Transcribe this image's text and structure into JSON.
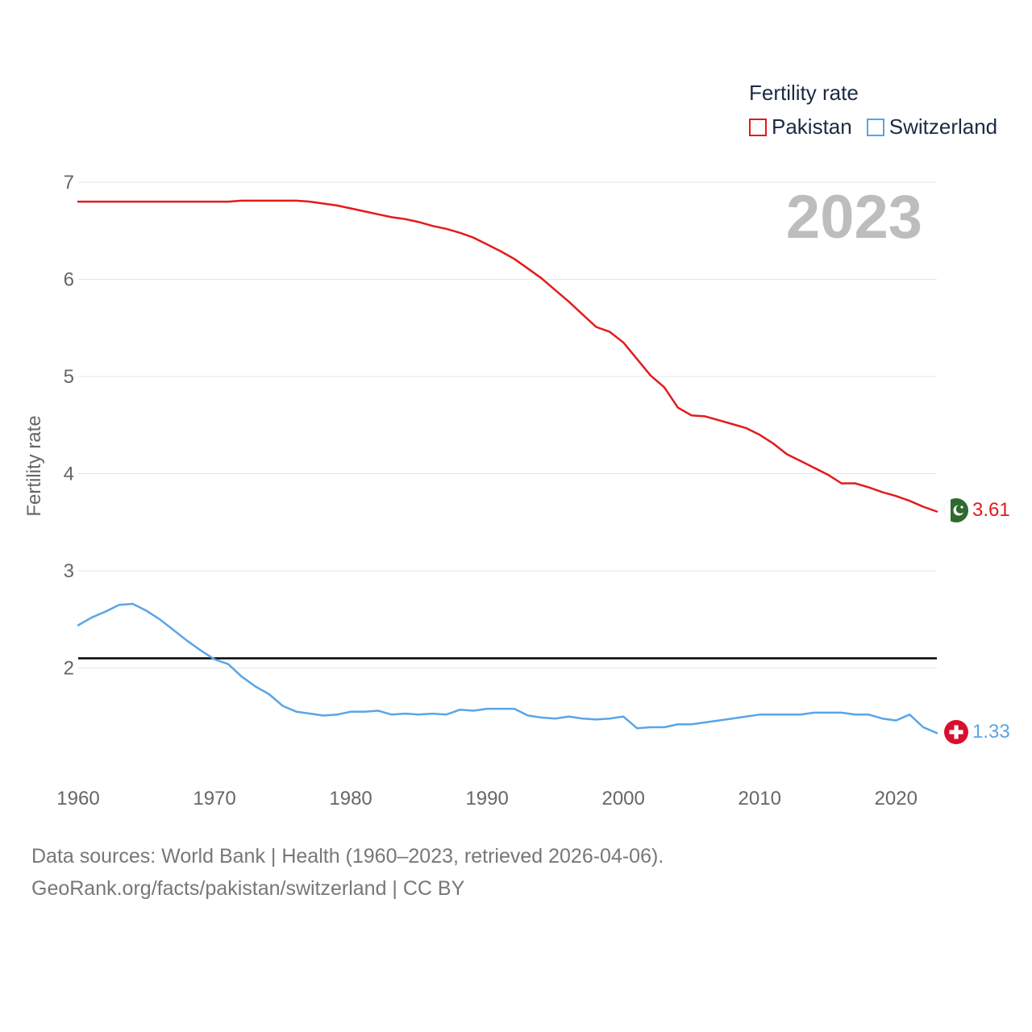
{
  "legend": {
    "title": "Fertility rate",
    "items": [
      {
        "label": "Pakistan",
        "color": "#e41a1c"
      },
      {
        "label": "Switzerland",
        "color": "#5aa5e6"
      }
    ]
  },
  "year_label": "2023",
  "end_labels": {
    "pakistan": "3.61",
    "switzerland": "1.33"
  },
  "flags": {
    "pakistan": "pakistan-flag-icon",
    "switzerland": "switzerland-flag-icon"
  },
  "footer": {
    "line1": "Data sources: World Bank | Health (1960–2023, retrieved 2026-04-06).",
    "line2": "GeoRank.org/facts/pakistan/switzerland | CC BY"
  },
  "chart_data": {
    "type": "line",
    "title": "Fertility rate",
    "xlabel": "",
    "ylabel": "Fertility rate",
    "xlim": [
      1960,
      2023
    ],
    "ylim": [
      1.1,
      7
    ],
    "x_ticks": [
      1960,
      1970,
      1980,
      1990,
      2000,
      2010,
      2020
    ],
    "y_ticks": [
      2,
      3,
      4,
      5,
      6,
      7
    ],
    "grid": true,
    "legend_position": "top-right",
    "reference_line": {
      "y": 2.1,
      "color": "#000000"
    },
    "x": [
      1960,
      1961,
      1962,
      1963,
      1964,
      1965,
      1966,
      1967,
      1968,
      1969,
      1970,
      1971,
      1972,
      1973,
      1974,
      1975,
      1976,
      1977,
      1978,
      1979,
      1980,
      1981,
      1982,
      1983,
      1984,
      1985,
      1986,
      1987,
      1988,
      1989,
      1990,
      1991,
      1992,
      1993,
      1994,
      1995,
      1996,
      1997,
      1998,
      1999,
      2000,
      2001,
      2002,
      2003,
      2004,
      2005,
      2006,
      2007,
      2008,
      2009,
      2010,
      2011,
      2012,
      2013,
      2014,
      2015,
      2016,
      2017,
      2018,
      2019,
      2020,
      2021,
      2022,
      2023
    ],
    "series": [
      {
        "name": "Pakistan",
        "color": "#e41a1c",
        "values": [
          6.8,
          6.8,
          6.8,
          6.8,
          6.8,
          6.8,
          6.8,
          6.8,
          6.8,
          6.8,
          6.8,
          6.8,
          6.81,
          6.81,
          6.81,
          6.81,
          6.81,
          6.8,
          6.78,
          6.76,
          6.73,
          6.7,
          6.67,
          6.64,
          6.62,
          6.59,
          6.55,
          6.52,
          6.48,
          6.43,
          6.36,
          6.29,
          6.21,
          6.11,
          6.01,
          5.89,
          5.77,
          5.64,
          5.51,
          5.46,
          5.35,
          5.18,
          5.01,
          4.89,
          4.68,
          4.6,
          4.59,
          4.55,
          4.51,
          4.47,
          4.4,
          4.31,
          4.2,
          4.13,
          4.06,
          3.99,
          3.9,
          3.9,
          3.86,
          3.81,
          3.77,
          3.72,
          3.66,
          3.61
        ]
      },
      {
        "name": "Switzerland",
        "color": "#5aa5e6",
        "values": [
          2.44,
          2.52,
          2.58,
          2.65,
          2.66,
          2.59,
          2.5,
          2.39,
          2.28,
          2.18,
          2.09,
          2.04,
          1.91,
          1.81,
          1.73,
          1.61,
          1.55,
          1.53,
          1.51,
          1.52,
          1.55,
          1.55,
          1.56,
          1.52,
          1.53,
          1.52,
          1.53,
          1.52,
          1.57,
          1.56,
          1.58,
          1.58,
          1.58,
          1.51,
          1.49,
          1.48,
          1.5,
          1.48,
          1.47,
          1.48,
          1.5,
          1.38,
          1.39,
          1.39,
          1.42,
          1.42,
          1.44,
          1.46,
          1.48,
          1.5,
          1.52,
          1.52,
          1.52,
          1.52,
          1.54,
          1.54,
          1.54,
          1.52,
          1.52,
          1.48,
          1.46,
          1.52,
          1.39,
          1.33
        ]
      }
    ]
  }
}
